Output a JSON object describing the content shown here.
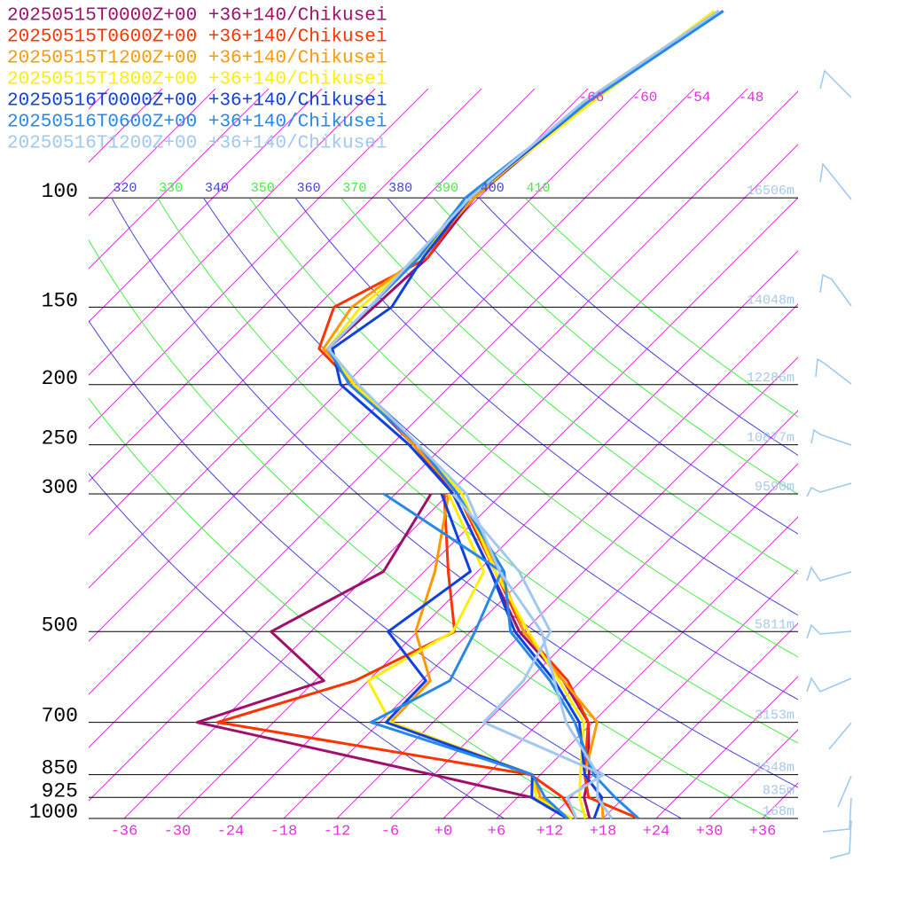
{
  "chart_data": {
    "type": "skewt",
    "pressure": [
      1000,
      925,
      850,
      700,
      600,
      500,
      400,
      300,
      250,
      200,
      175,
      150,
      125,
      100,
      70,
      50
    ],
    "series": [
      {
        "name": "20250515T0000Z+00 +36+140/Chikusei",
        "color": "#a0106a",
        "values": [
          16.5,
          13.5,
          11.5,
          5.5,
          -2,
          -12.5,
          -22.5,
          -35.5,
          -45.5,
          -59,
          -66,
          -65.5,
          -65,
          -66.5,
          -64.5,
          -60
        ],
        "dewpoint": [
          14,
          7.6,
          -6.2,
          -38.6,
          -29,
          -40.5,
          -34.6,
          -38,
          null,
          null,
          null,
          null,
          null,
          null,
          null,
          null
        ]
      },
      {
        "name": "20250515T0600Z+00 +36+140/Chikusei",
        "color": "#ff3300",
        "values": [
          22,
          14,
          11,
          5.5,
          -1.5,
          -12,
          -22,
          -35,
          -45,
          -59,
          -67,
          -70,
          -65,
          -67,
          -64.5,
          -60
        ],
        "dewpoint": [
          15,
          11.1,
          4.9,
          -36.3,
          -25.5,
          -19.8,
          -27.3,
          -36.5,
          null,
          null,
          null,
          null,
          null,
          null,
          null,
          null
        ]
      },
      {
        "name": "20250515T1200Z+00 +36+140/Chikusei",
        "color": "#ff9900",
        "values": [
          18,
          15.5,
          11,
          6.5,
          -2,
          -12,
          -21.5,
          -35,
          -45.5,
          -58.5,
          -66.5,
          -68,
          -66,
          -66.5,
          -65,
          -60
        ],
        "dewpoint": [
          14,
          8.6,
          5.1,
          -16.8,
          -17,
          -24.2,
          -28.8,
          -36,
          null,
          null,
          null,
          null,
          null,
          null,
          null,
          null
        ]
      },
      {
        "name": "20250515T1800Z+00 +36+140/Chikusei",
        "color": "#ffee00",
        "values": [
          16,
          13,
          10.5,
          5,
          -2.5,
          -11.5,
          -22,
          -34.5,
          -45,
          -59,
          -66,
          -67,
          -66,
          -67,
          -64,
          -60.5
        ],
        "dewpoint": [
          14.5,
          8.1,
          5.1,
          -16.8,
          -24,
          -20,
          -23.3,
          -36,
          null,
          null,
          null,
          null,
          null,
          null,
          null,
          null
        ]
      },
      {
        "name": "20250516T0000Z+00 +36+140/Chikusei",
        "color": "#1040e0",
        "values": [
          17,
          15.5,
          11,
          4.5,
          -3,
          -13,
          -22.5,
          -35.5,
          -46,
          -60.5,
          -65.5,
          -63.5,
          -65.5,
          -67,
          -64.5,
          -59.5
        ],
        "dewpoint": [
          14,
          7.6,
          5.1,
          -17.3,
          -17.5,
          -27.3,
          -24.8,
          -36.8,
          null,
          null,
          null,
          null,
          null,
          null,
          null,
          null
        ]
      },
      {
        "name": "20250516T0600Z+00 +36+140/Chikusei",
        "color": "#2888e8",
        "values": [
          22,
          17,
          12,
          4,
          -3.5,
          -13.5,
          -21,
          -35,
          -45,
          -59.5,
          -66,
          -66,
          -66,
          -67.5,
          -64.5,
          -59.5
        ],
        "dewpoint": [
          14,
          9.1,
          5.1,
          -19,
          -14.8,
          -17.5,
          -21.3,
          -43.3,
          null,
          null,
          null,
          null,
          null,
          null,
          null,
          null
        ]
      },
      {
        "name": "20250516T1200Z+00 +36+140/Chikusei",
        "color": "#a0c8f0",
        "values": [
          19,
          15,
          12.5,
          3,
          -3,
          -10,
          -21.5,
          -34,
          -45,
          -58.5,
          -66,
          -66,
          -66.5,
          -67,
          -65,
          -60
        ],
        "dewpoint": [
          15,
          11.6,
          13.1,
          -6.3,
          -6.5,
          -9,
          -19.3,
          -35.5,
          null,
          null,
          null,
          null,
          null,
          null,
          null,
          null
        ]
      }
    ],
    "ylim": [
      1000,
      48
    ],
    "yticks": [
      1000,
      925,
      850,
      700,
      500,
      300,
      250,
      200,
      150,
      100
    ],
    "height_labels": [
      "168m",
      "835m",
      "1548m",
      "3153m",
      "5811m",
      "9590m",
      "10877m",
      "12286m",
      "14048m",
      "16506m"
    ],
    "xlim": [
      -40,
      40
    ],
    "xticks": [
      -36,
      -30,
      -24,
      -18,
      -12,
      {
        "value": -6,
        "label": "-6"
      },
      {
        "value": 0,
        "label": "+0"
      },
      {
        "value": 6,
        "label": "+6"
      },
      {
        "value": 12,
        "label": "+12"
      },
      {
        "value": 18,
        "label": "+18"
      },
      {
        "value": 24,
        "label": "+24"
      },
      {
        "value": 30,
        "label": "+30"
      },
      {
        "value": 36,
        "label": "+36"
      }
    ],
    "isotherm_labels": [
      -66,
      -60,
      -54,
      -48
    ],
    "isotherms": [
      -120,
      -114,
      -108,
      -102,
      -96,
      -90,
      -84,
      -78,
      -72,
      -66,
      -60,
      -54,
      -48,
      -42,
      -36,
      -30,
      -24,
      -18,
      -12,
      -6,
      0,
      6,
      12,
      18,
      24,
      30,
      36
    ],
    "isotherm_color": "#dd33dd",
    "dry_adiabats": [
      280,
      290,
      300,
      310,
      320,
      330,
      340,
      350,
      360,
      370,
      380,
      390,
      400,
      410
    ],
    "adiabat_colors": [
      "#4444dd",
      "#44ee44"
    ],
    "height_color": "#a8c8e8"
  }
}
